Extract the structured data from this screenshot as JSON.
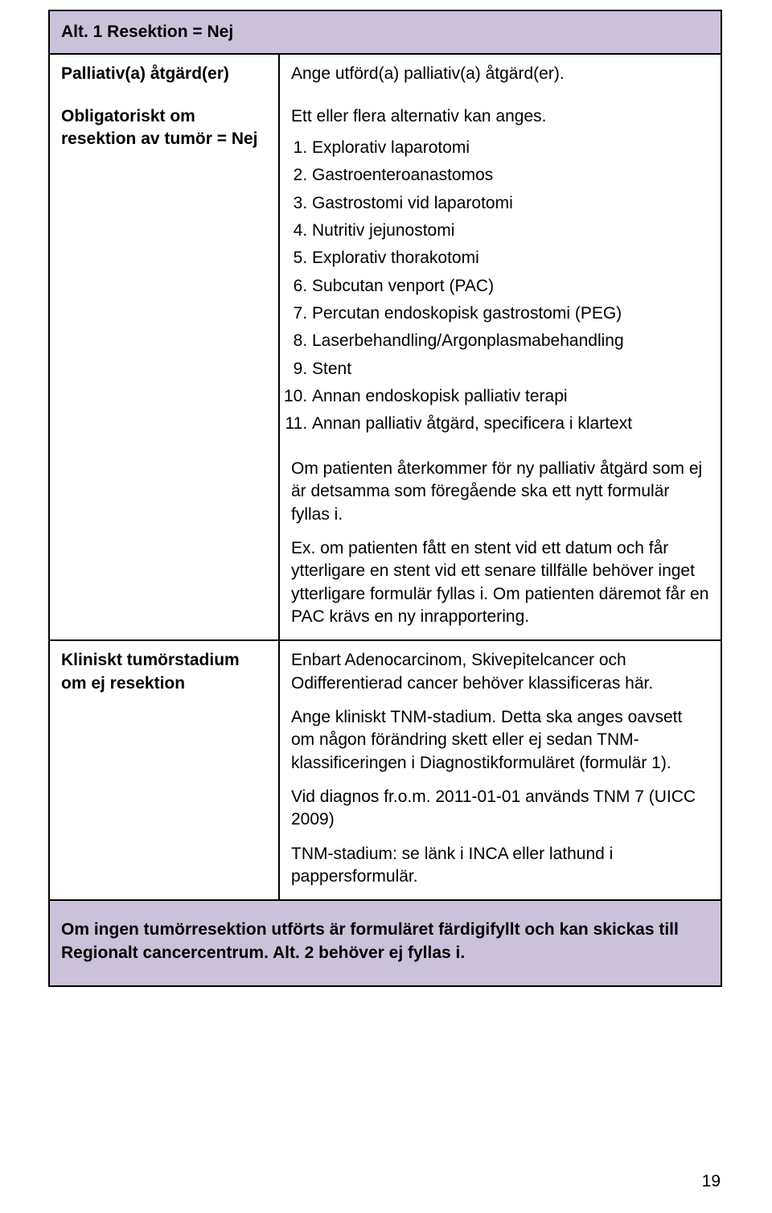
{
  "colors": {
    "header_bg": "#cbc1d9",
    "border": "#000000",
    "text": "#000000",
    "page_bg": "#ffffff"
  },
  "header": {
    "title": "Alt. 1 Resektion = Nej"
  },
  "rows": [
    {
      "left": "Palliativ(a) åtgärd(er)",
      "right_text": "Ange utförd(a) palliativ(a) åtgärd(er)."
    },
    {
      "left": "Obligatoriskt om resektion av tumör = Nej",
      "right_intro": "Ett eller flera alternativ kan anges.",
      "right_list": [
        "Explorativ laparotomi",
        "Gastroenteroanastomos",
        "Gastrostomi vid laparotomi",
        "Nutritiv jejunostomi",
        "Explorativ thorakotomi",
        "Subcutan venport (PAC)",
        "Percutan endoskopisk gastrostomi (PEG)",
        "Laserbehandling/Argonplasmabehandling",
        "Stent",
        "Annan endoskopisk palliativ terapi",
        "Annan palliativ åtgärd, specificera i klartext"
      ]
    },
    {
      "left": "",
      "right_paras": [
        "Om patienten återkommer för ny palliativ åtgärd som ej är detsamma som föregående ska ett nytt formulär fyllas i.",
        "Ex. om patienten fått en stent vid ett datum och får ytterligare en stent vid ett senare tillfälle behöver inget ytterligare formulär fyllas i. Om patienten däremot får en PAC krävs en ny inrapportering."
      ]
    },
    {
      "left": "Kliniskt tumörstadium om ej resektion",
      "right_paras": [
        "Enbart Adenocarcinom, Skivepitelcancer och Odifferentierad cancer behöver klassificeras här.",
        "Ange kliniskt TNM-stadium. Detta ska anges oavsett om någon förändring skett eller ej sedan TNM-klassificeringen i Diagnostikformuläret (formulär 1).",
        "Vid diagnos fr.o.m. 2011-01-01 används TNM 7 (UICC 2009)",
        "TNM-stadium: se länk i INCA eller lathund i pappersformulär."
      ]
    }
  ],
  "note": "Om ingen tumörresektion utförts är formuläret färdigifyllt och kan skickas till Regionalt cancercentrum. Alt. 2 behöver ej fyllas i.",
  "page_number": "19"
}
